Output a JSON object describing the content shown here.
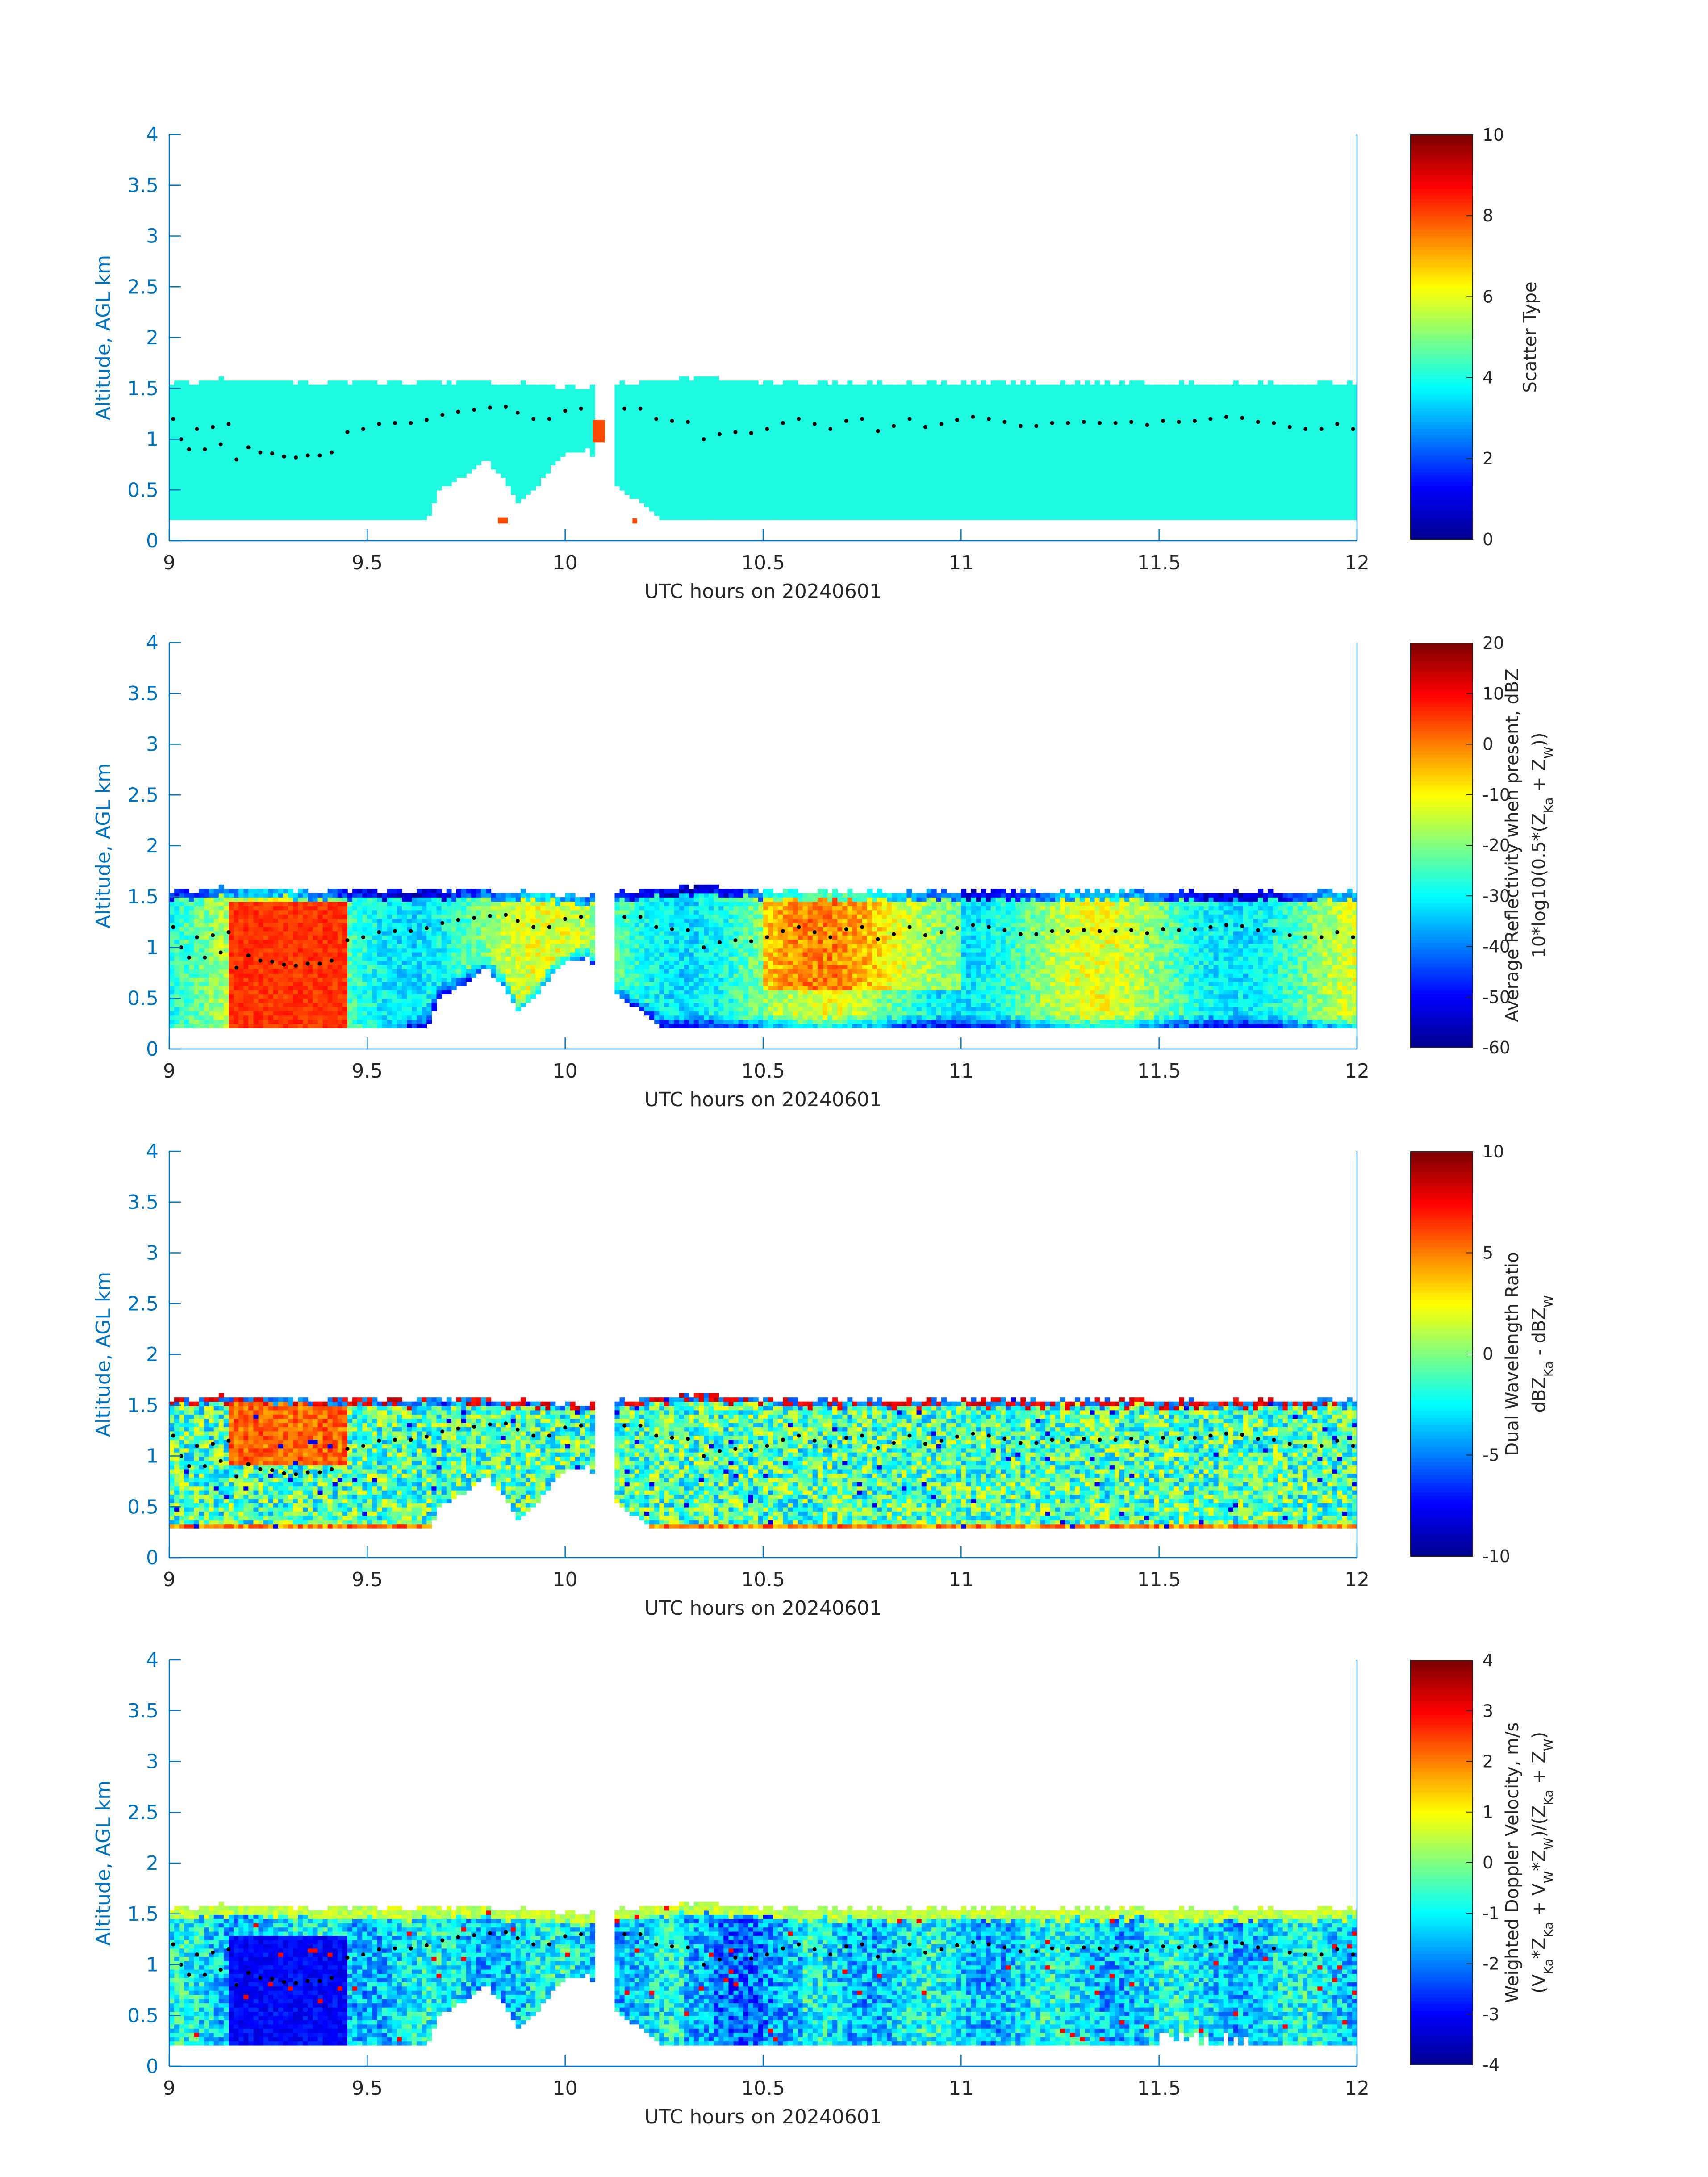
{
  "colors": {
    "axis": "#0072bd",
    "text": "#262626",
    "fill": "#1efadf",
    "fill_alt": "#ff4a00",
    "cloud_top_dots": "#000000",
    "colorbar_stops": [
      "#00008f",
      "#0000ff",
      "#0080ff",
      "#00ffff",
      "#80ff80",
      "#ffff00",
      "#ff8000",
      "#ff0000",
      "#800000"
    ]
  },
  "chart_data": [
    {
      "type": "heatmap",
      "xlabel": "UTC hours on 20240601",
      "ylabel": "Altitude, AGL km",
      "xlim": [
        9,
        12
      ],
      "ylim": [
        0,
        4
      ],
      "x_ticks": [
        "9",
        "9.5",
        "10",
        "10.5",
        "11",
        "11.5",
        "12"
      ],
      "y_ticks": [
        "0",
        "0.5",
        "1",
        "1.5",
        "2",
        "2.5",
        "3",
        "3.5",
        "4"
      ],
      "colorbar_label": [
        "Scatter Type"
      ],
      "clim": [
        0,
        10
      ],
      "colorbar_ticks": [
        "0",
        "2",
        "4",
        "6",
        "8",
        "10"
      ],
      "field": "scatter_type",
      "dominant_value": 3.9
    },
    {
      "type": "heatmap",
      "xlabel": "UTC hours on 20240601",
      "ylabel": "Altitude, AGL km",
      "xlim": [
        9,
        12
      ],
      "ylim": [
        0,
        4
      ],
      "x_ticks": [
        "9",
        "9.5",
        "10",
        "10.5",
        "11",
        "11.5",
        "12"
      ],
      "y_ticks": [
        "0",
        "0.5",
        "1",
        "1.5",
        "2",
        "2.5",
        "3",
        "3.5",
        "4"
      ],
      "colorbar_label": [
        "Average Reflectivity when present, dBZ",
        "10*log10(0.5*(Z_Ka + Z_W))"
      ],
      "clim": [
        -60,
        20
      ],
      "colorbar_ticks": [
        "-60",
        "-50",
        "-40",
        "-30",
        "-20",
        "-10",
        "0",
        "10",
        "20"
      ],
      "field": "reflectivity"
    },
    {
      "type": "heatmap",
      "xlabel": "UTC hours on 20240601",
      "ylabel": "Altitude, AGL km",
      "xlim": [
        9,
        12
      ],
      "ylim": [
        0,
        4
      ],
      "x_ticks": [
        "9",
        "9.5",
        "10",
        "10.5",
        "11",
        "11.5",
        "12"
      ],
      "y_ticks": [
        "0",
        "0.5",
        "1",
        "1.5",
        "2",
        "2.5",
        "3",
        "3.5",
        "4"
      ],
      "colorbar_label": [
        "Dual Wavelength Ratio",
        "dBZ_Ka - dBZ_W"
      ],
      "clim": [
        -10,
        10
      ],
      "colorbar_ticks": [
        "-10",
        "-5",
        "0",
        "5",
        "10"
      ],
      "field": "dwr"
    },
    {
      "type": "heatmap",
      "xlabel": "UTC hours on 20240601",
      "ylabel": "Altitude, AGL km",
      "xlim": [
        9,
        12
      ],
      "ylim": [
        0,
        4
      ],
      "x_ticks": [
        "9",
        "9.5",
        "10",
        "10.5",
        "11",
        "11.5",
        "12"
      ],
      "y_ticks": [
        "0",
        "0.5",
        "1",
        "1.5",
        "2",
        "2.5",
        "3",
        "3.5",
        "4"
      ],
      "colorbar_label": [
        "Weighted Doppler Velocity, m/s",
        "(V_Ka*Z_Ka + V_W*Z_W)/(Z_Ka + Z_W)"
      ],
      "clim": [
        -4,
        4
      ],
      "colorbar_ticks": [
        "-4",
        "-3",
        "-2",
        "-1",
        "0",
        "1",
        "2",
        "3",
        "4"
      ],
      "field": "doppler_velocity"
    }
  ],
  "cloud_layer": {
    "gap_hours": [
      10.08,
      10.12
    ],
    "top_km": [
      [
        9.0,
        1.55
      ],
      [
        9.15,
        1.6
      ],
      [
        9.45,
        1.55
      ],
      [
        9.65,
        1.55
      ],
      [
        9.8,
        1.55
      ],
      [
        9.95,
        1.55
      ],
      [
        10.05,
        1.5
      ],
      [
        10.15,
        1.55
      ],
      [
        10.3,
        1.6
      ],
      [
        10.6,
        1.55
      ],
      [
        10.9,
        1.55
      ],
      [
        11.3,
        1.55
      ],
      [
        11.7,
        1.55
      ],
      [
        12.0,
        1.55
      ]
    ],
    "base_km": [
      [
        9.0,
        0.2
      ],
      [
        9.65,
        0.2
      ],
      [
        9.68,
        0.5
      ],
      [
        9.75,
        0.65
      ],
      [
        9.8,
        0.8
      ],
      [
        9.85,
        0.6
      ],
      [
        9.88,
        0.35
      ],
      [
        9.92,
        0.5
      ],
      [
        9.96,
        0.7
      ],
      [
        10.0,
        0.85
      ],
      [
        10.06,
        0.9
      ],
      [
        10.12,
        0.55
      ],
      [
        10.2,
        0.35
      ],
      [
        10.24,
        0.2
      ],
      [
        12.0,
        0.2
      ]
    ]
  },
  "cloud_top_dots": [
    [
      9.01,
      1.2
    ],
    [
      9.03,
      1.0
    ],
    [
      9.05,
      0.9
    ],
    [
      9.07,
      1.1
    ],
    [
      9.09,
      0.9
    ],
    [
      9.11,
      1.12
    ],
    [
      9.13,
      0.95
    ],
    [
      9.15,
      1.15
    ],
    [
      9.17,
      0.8
    ],
    [
      9.2,
      0.92
    ],
    [
      9.23,
      0.87
    ],
    [
      9.26,
      0.86
    ],
    [
      9.29,
      0.83
    ],
    [
      9.32,
      0.82
    ],
    [
      9.35,
      0.84
    ],
    [
      9.38,
      0.84
    ],
    [
      9.41,
      0.87
    ],
    [
      9.45,
      1.07
    ],
    [
      9.49,
      1.1
    ],
    [
      9.53,
      1.15
    ],
    [
      9.57,
      1.16
    ],
    [
      9.61,
      1.16
    ],
    [
      9.65,
      1.19
    ],
    [
      9.69,
      1.24
    ],
    [
      9.73,
      1.27
    ],
    [
      9.77,
      1.29
    ],
    [
      9.81,
      1.31
    ],
    [
      9.85,
      1.32
    ],
    [
      9.88,
      1.26
    ],
    [
      9.92,
      1.2
    ],
    [
      9.96,
      1.2
    ],
    [
      10.0,
      1.28
    ],
    [
      10.04,
      1.3
    ],
    [
      10.15,
      1.3
    ],
    [
      10.19,
      1.3
    ],
    [
      10.23,
      1.2
    ],
    [
      10.27,
      1.18
    ],
    [
      10.31,
      1.17
    ],
    [
      10.35,
      1.0
    ],
    [
      10.39,
      1.05
    ],
    [
      10.43,
      1.07
    ],
    [
      10.47,
      1.06
    ],
    [
      10.51,
      1.1
    ],
    [
      10.55,
      1.16
    ],
    [
      10.59,
      1.2
    ],
    [
      10.63,
      1.15
    ],
    [
      10.67,
      1.1
    ],
    [
      10.71,
      1.18
    ],
    [
      10.75,
      1.2
    ],
    [
      10.79,
      1.08
    ],
    [
      10.83,
      1.13
    ],
    [
      10.87,
      1.2
    ],
    [
      10.91,
      1.12
    ],
    [
      10.95,
      1.15
    ],
    [
      10.99,
      1.19
    ],
    [
      11.03,
      1.22
    ],
    [
      11.07,
      1.2
    ],
    [
      11.11,
      1.17
    ],
    [
      11.15,
      1.13
    ],
    [
      11.19,
      1.13
    ],
    [
      11.23,
      1.16
    ],
    [
      11.27,
      1.16
    ],
    [
      11.31,
      1.17
    ],
    [
      11.35,
      1.16
    ],
    [
      11.39,
      1.16
    ],
    [
      11.43,
      1.17
    ],
    [
      11.47,
      1.14
    ],
    [
      11.51,
      1.18
    ],
    [
      11.55,
      1.17
    ],
    [
      11.59,
      1.18
    ],
    [
      11.63,
      1.2
    ],
    [
      11.67,
      1.22
    ],
    [
      11.71,
      1.21
    ],
    [
      11.75,
      1.17
    ],
    [
      11.79,
      1.16
    ],
    [
      11.83,
      1.12
    ],
    [
      11.87,
      1.1
    ],
    [
      11.91,
      1.1
    ],
    [
      11.95,
      1.15
    ],
    [
      11.99,
      1.1
    ]
  ]
}
